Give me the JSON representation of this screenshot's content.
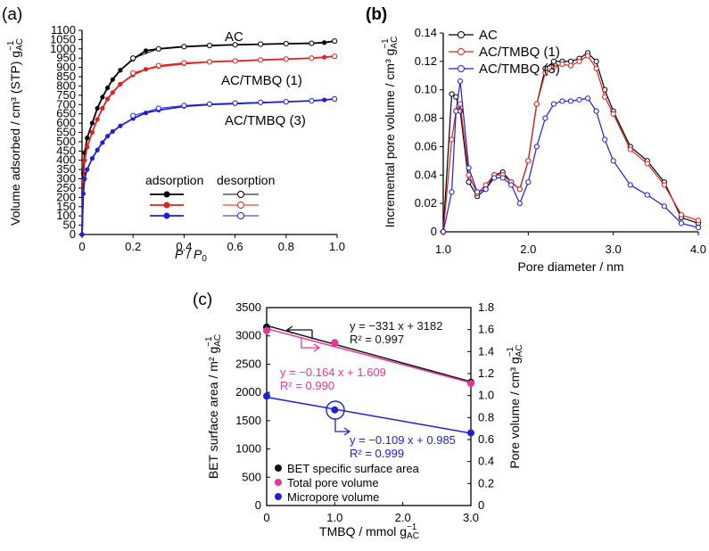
{
  "chart_data": [
    {
      "type": "line",
      "panel": "(a)",
      "xlabel_italic": "P",
      "xlabel_sep": " / ",
      "xlabel_sub_main": "P",
      "xlabel_sub": "0",
      "ylabel": "Volume adsorbed / cm³ (STP) g",
      "ylabel_sub": "AC",
      "ylabel_sup": "−1",
      "xlim": [
        0,
        1.0
      ],
      "ylim": [
        0,
        1100
      ],
      "xticks": [
        "0",
        "0.2",
        "0.4",
        "0.6",
        "0.8",
        "1.0"
      ],
      "yticks": [
        "0",
        "50",
        "100",
        "150",
        "200",
        "250",
        "300",
        "350",
        "400",
        "450",
        "500",
        "550",
        "600",
        "650",
        "700",
        "750",
        "800",
        "850",
        "900",
        "950",
        "1000",
        "1050",
        "1100"
      ],
      "legend_headers": [
        "adsorption",
        "desorption"
      ],
      "series": [
        {
          "name": "AC",
          "color": "#000000",
          "x": [
            0.0,
            0.005,
            0.01,
            0.02,
            0.04,
            0.06,
            0.08,
            0.1,
            0.12,
            0.15,
            0.2,
            0.25,
            0.3,
            0.4,
            0.5,
            0.6,
            0.7,
            0.8,
            0.9,
            0.95,
            0.99
          ],
          "y": [
            0,
            330,
            440,
            520,
            600,
            680,
            740,
            790,
            835,
            885,
            945,
            990,
            1000,
            1012,
            1018,
            1022,
            1025,
            1028,
            1030,
            1034,
            1042
          ],
          "desorption_x": [
            0.99,
            0.9,
            0.8,
            0.7,
            0.6,
            0.5,
            0.4,
            0.3,
            0.2
          ],
          "desorption_y": [
            1042,
            1030,
            1028,
            1025,
            1022,
            1018,
            1012,
            1000,
            950
          ]
        },
        {
          "name": "AC/TMBQ (1)",
          "color": "#e0201c",
          "x": [
            0.0,
            0.005,
            0.01,
            0.02,
            0.04,
            0.06,
            0.08,
            0.1,
            0.12,
            0.15,
            0.2,
            0.25,
            0.3,
            0.4,
            0.5,
            0.6,
            0.7,
            0.8,
            0.9,
            0.95,
            0.99
          ],
          "y": [
            0,
            290,
            400,
            470,
            550,
            620,
            680,
            730,
            765,
            810,
            860,
            890,
            905,
            920,
            930,
            935,
            940,
            945,
            950,
            955,
            960
          ],
          "desorption_x": [
            0.99,
            0.9,
            0.8,
            0.7,
            0.6,
            0.5,
            0.4,
            0.3,
            0.2
          ],
          "desorption_y": [
            960,
            950,
            945,
            940,
            935,
            930,
            925,
            910,
            870
          ]
        },
        {
          "name": "AC/TMBQ (3)",
          "color": "#1f1fd6",
          "x": [
            0.0,
            0.005,
            0.01,
            0.02,
            0.04,
            0.06,
            0.08,
            0.1,
            0.12,
            0.15,
            0.2,
            0.25,
            0.3,
            0.4,
            0.5,
            0.6,
            0.7,
            0.8,
            0.9,
            0.95,
            0.99
          ],
          "y": [
            0,
            220,
            300,
            350,
            410,
            455,
            495,
            530,
            555,
            585,
            625,
            655,
            670,
            690,
            700,
            705,
            710,
            715,
            720,
            725,
            730
          ],
          "desorption_x": [
            0.99,
            0.9,
            0.8,
            0.7,
            0.6,
            0.5,
            0.4,
            0.3,
            0.2
          ],
          "desorption_y": [
            730,
            720,
            715,
            712,
            708,
            703,
            695,
            680,
            640
          ]
        }
      ]
    },
    {
      "type": "line",
      "panel": "(b)",
      "xlabel": "Pore diameter / nm",
      "ylabel": "Incremental pore volume / cm³ g",
      "ylabel_sub": "AC",
      "ylabel_sup": "−1",
      "xlim": [
        1.0,
        4.0
      ],
      "ylim": [
        0,
        0.14
      ],
      "xticks": [
        "1.0",
        "2.0",
        "3.0",
        "4.0"
      ],
      "yticks": [
        "0",
        "0.02",
        "0.04",
        "0.06",
        "0.08",
        "0.10",
        "0.12",
        "0.14"
      ],
      "series": [
        {
          "name": "AC",
          "color": "#000000",
          "x": [
            1.0,
            1.1,
            1.15,
            1.2,
            1.3,
            1.4,
            1.5,
            1.6,
            1.7,
            1.8,
            1.9,
            2.0,
            2.1,
            2.2,
            2.3,
            2.4,
            2.5,
            2.6,
            2.7,
            2.8,
            2.9,
            3.0,
            3.2,
            3.4,
            3.6,
            3.8,
            4.0
          ],
          "y": [
            0.0,
            0.097,
            0.095,
            0.085,
            0.035,
            0.025,
            0.03,
            0.04,
            0.042,
            0.035,
            0.03,
            0.05,
            0.09,
            0.115,
            0.12,
            0.12,
            0.12,
            0.122,
            0.126,
            0.12,
            0.1,
            0.085,
            0.06,
            0.05,
            0.035,
            0.01,
            0.006
          ]
        },
        {
          "name": "AC/TMBQ (1)",
          "color": "#e0201c",
          "x": [
            1.0,
            1.1,
            1.15,
            1.2,
            1.3,
            1.4,
            1.5,
            1.6,
            1.7,
            1.8,
            1.9,
            2.0,
            2.1,
            2.2,
            2.3,
            2.4,
            2.5,
            2.6,
            2.7,
            2.8,
            2.9,
            3.0,
            3.2,
            3.4,
            3.6,
            3.8,
            4.0
          ],
          "y": [
            0.0,
            0.065,
            0.085,
            0.09,
            0.04,
            0.027,
            0.033,
            0.04,
            0.04,
            0.035,
            0.03,
            0.05,
            0.09,
            0.112,
            0.116,
            0.118,
            0.117,
            0.12,
            0.124,
            0.115,
            0.095,
            0.083,
            0.058,
            0.048,
            0.033,
            0.012,
            0.008
          ]
        },
        {
          "name": "AC/TMBQ (3)",
          "color": "#1f1fd6",
          "x": [
            1.0,
            1.1,
            1.15,
            1.2,
            1.3,
            1.4,
            1.5,
            1.6,
            1.7,
            1.8,
            1.9,
            2.0,
            2.1,
            2.2,
            2.3,
            2.4,
            2.5,
            2.6,
            2.7,
            2.8,
            2.9,
            3.0,
            3.2,
            3.4,
            3.6,
            3.8,
            4.0
          ],
          "y": [
            0.0,
            0.028,
            0.085,
            0.106,
            0.045,
            0.028,
            0.03,
            0.038,
            0.038,
            0.033,
            0.02,
            0.035,
            0.06,
            0.08,
            0.09,
            0.092,
            0.092,
            0.093,
            0.094,
            0.085,
            0.065,
            0.05,
            0.033,
            0.026,
            0.018,
            0.006,
            0.003
          ]
        }
      ]
    },
    {
      "type": "scatter",
      "panel": "(c)",
      "xlabel": "TMBQ / mmol g",
      "xlabel_sub": "AC",
      "xlabel_sup": "−1",
      "ylabel": "BET surface area / m² g",
      "ylabel_sub": "AC",
      "ylabel_sup": "−1",
      "y2label": "Pore volume / cm³ g",
      "y2label_sub": "AC",
      "y2label_sup": "−1",
      "xlim": [
        0,
        3.0
      ],
      "ylim": [
        0,
        3500
      ],
      "y2lim": [
        0,
        1.8
      ],
      "xticks": [
        "0",
        "1.0",
        "2.0",
        "3.0"
      ],
      "yticks": [
        "0",
        "500",
        "1000",
        "1500",
        "2000",
        "2500",
        "3000",
        "3500"
      ],
      "y2ticks": [
        "0",
        "0.2",
        "0.4",
        "0.6",
        "0.8",
        "1.0",
        "1.2",
        "1.4",
        "1.6",
        "1.8"
      ],
      "series": [
        {
          "name": "BET specific surface area",
          "color": "#111111",
          "axis": "left",
          "x": [
            0,
            1.0,
            3.0
          ],
          "y": [
            3155,
            2880,
            2180
          ],
          "fit": {
            "slope": -331,
            "intercept": 3182
          },
          "equation": "y = −331 x + 3182",
          "r2_label": "R² = 0.997"
        },
        {
          "name": "Total pore volume",
          "color": "#e8359a",
          "axis": "right",
          "x": [
            0,
            1.0,
            3.0
          ],
          "y": [
            1.59,
            1.48,
            1.11
          ],
          "fit": {
            "slope": -0.164,
            "intercept": 1.609
          },
          "equation": "y = −0.164 x + 1.609",
          "r2_label": "R² = 0.990"
        },
        {
          "name": "Micropore volume",
          "color": "#1f1fd6",
          "axis": "right",
          "x": [
            0,
            1.0,
            3.0
          ],
          "y": [
            0.995,
            0.87,
            0.66
          ],
          "fit": {
            "slope": -0.109,
            "intercept": 0.985
          },
          "equation": "y = −0.109 x + 0.985",
          "r2_label": "R² = 0.999"
        }
      ]
    }
  ]
}
